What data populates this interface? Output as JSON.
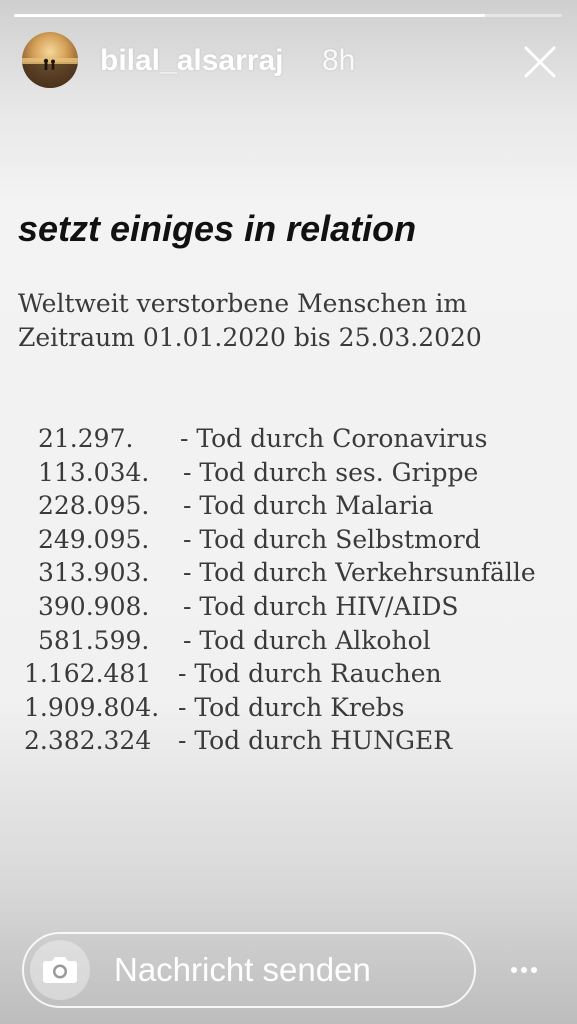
{
  "story": {
    "progress": 0.86,
    "username": "bilal_alsarraj",
    "time_ago": "8h"
  },
  "content": {
    "headline": "setzt einiges in relation",
    "intro_lines": [
      "Weltweit verstorbene Menschen im",
      "Zeitraum 01.01.2020 bis 25.03.2020"
    ],
    "stats": [
      {
        "number": "21.297.",
        "label": "- Tod durch Coronavirus"
      },
      {
        "number": "113.034.",
        "label": "- Tod durch ses. Grippe"
      },
      {
        "number": "228.095.",
        "label": "- Tod durch Malaria"
      },
      {
        "number": "249.095.",
        "label": "- Tod durch Selbstmord"
      },
      {
        "number": "313.903.",
        "label": "- Tod durch Verkehrsunfälle"
      },
      {
        "number": "390.908.",
        "label": "- Tod durch HIV/AIDS"
      },
      {
        "number": "581.599.",
        "label": "- Tod durch Alkohol"
      },
      {
        "number": "1.162.481",
        "label": "- Tod durch Rauchen"
      },
      {
        "number": "1.909.804.",
        "label": "- Tod durch Krebs"
      },
      {
        "number": "2.382.324",
        "label": "- Tod durch HUNGER"
      }
    ]
  },
  "reply": {
    "placeholder": "Nachricht senden"
  },
  "icons": {
    "close": "close-icon",
    "camera": "camera-icon",
    "more": "more-dots-icon"
  }
}
